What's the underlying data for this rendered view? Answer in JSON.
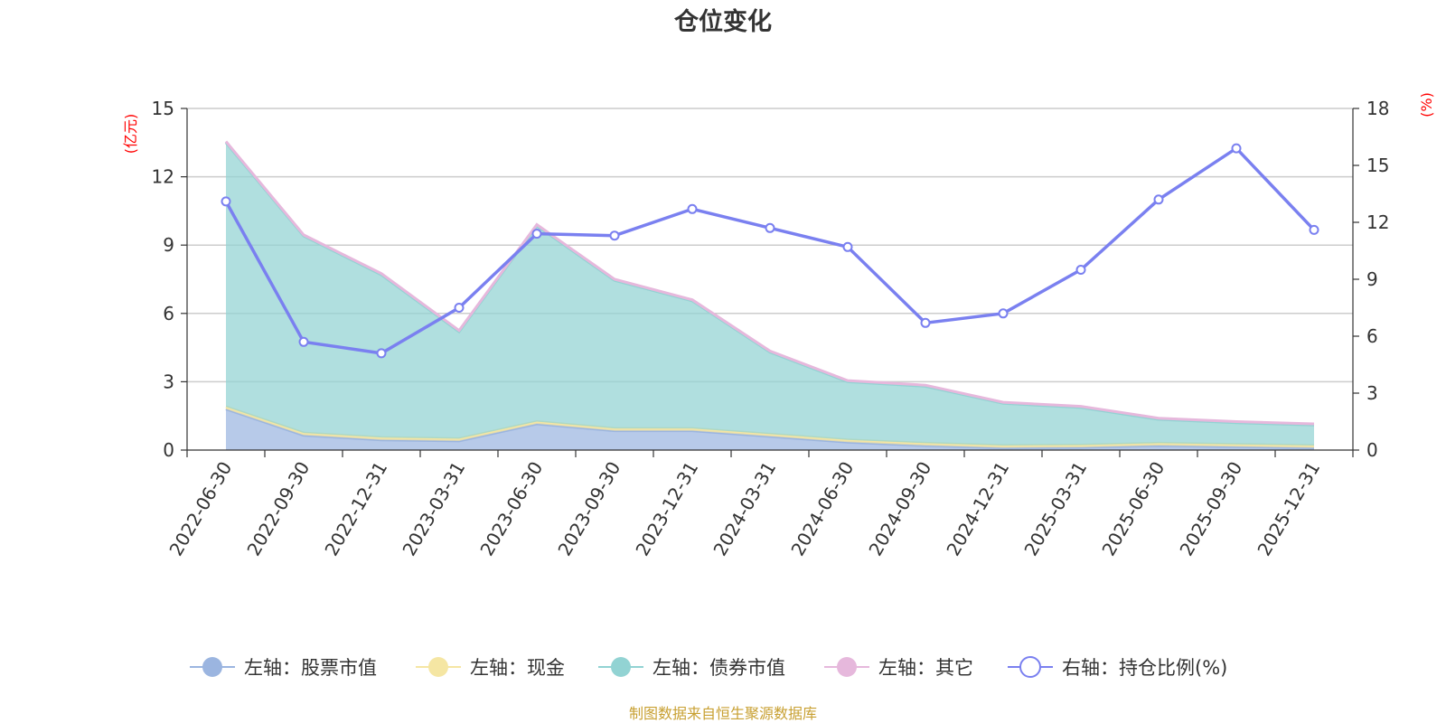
{
  "chart_data": {
    "type": "area",
    "title": "仓位变化",
    "categories": [
      "2022-06-30",
      "2022-09-30",
      "2022-12-31",
      "2023-03-31",
      "2023-06-30",
      "2023-09-30",
      "2023-12-31",
      "2024-03-31",
      "2024-06-30",
      "2024-09-30",
      "2024-12-31",
      "2025-03-31",
      "2025-06-30",
      "2025-09-30",
      "2025-12-31"
    ],
    "left_axis": {
      "unit": "(亿元)",
      "ticks": [
        "0",
        "3",
        "6",
        "9",
        "12",
        "15"
      ],
      "ylim": [
        0,
        15
      ]
    },
    "right_axis": {
      "unit": "(%)",
      "ticks": [
        "0",
        "3",
        "6",
        "9",
        "12",
        "15",
        "18"
      ],
      "ylim": [
        0,
        18
      ]
    },
    "series": [
      {
        "name": "左轴：股票市值",
        "axis": "left",
        "kind": "stacked-area",
        "color": "#9bb5e0",
        "values": [
          1.8,
          0.65,
          0.45,
          0.4,
          1.15,
          0.85,
          0.85,
          0.6,
          0.35,
          0.2,
          0.1,
          0.12,
          0.2,
          0.15,
          0.1
        ]
      },
      {
        "name": "左轴：现金",
        "axis": "left",
        "kind": "stacked-area",
        "color": "#f5e6a3",
        "values": [
          0.1,
          0.1,
          0.1,
          0.1,
          0.1,
          0.1,
          0.1,
          0.1,
          0.1,
          0.1,
          0.1,
          0.1,
          0.1,
          0.1,
          0.1
        ]
      },
      {
        "name": "左轴：债券市值",
        "axis": "left",
        "kind": "stacked-area",
        "color": "#92d3d3",
        "values": [
          11.6,
          8.65,
          7.15,
          4.7,
          8.6,
          6.5,
          5.6,
          3.6,
          2.55,
          2.5,
          1.85,
          1.65,
          1.05,
          0.95,
          0.9
        ]
      },
      {
        "name": "左轴：其它",
        "axis": "left",
        "kind": "stacked-area",
        "color": "#e6b8dc",
        "values": [
          0.05,
          0.05,
          0.05,
          0.05,
          0.05,
          0.05,
          0.05,
          0.05,
          0.05,
          0.05,
          0.05,
          0.05,
          0.05,
          0.05,
          0.05
        ]
      },
      {
        "name": "右轴：持仓比例(%)",
        "axis": "right",
        "kind": "line",
        "color": "#7a80f0",
        "values": [
          13.1,
          5.7,
          5.1,
          7.5,
          11.4,
          11.3,
          12.7,
          11.7,
          10.7,
          6.7,
          7.2,
          9.5,
          13.2,
          15.9,
          11.6
        ]
      }
    ],
    "source": "制图数据来自恒生聚源数据库",
    "source_color": "#c8a032",
    "unit_color": "#ff0000"
  }
}
